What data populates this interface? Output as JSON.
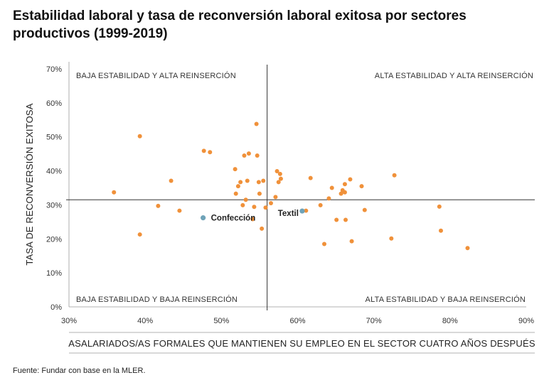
{
  "page": {
    "title": "Estabilidad laboral y tasa de reconversión laboral exitosa por sectores productivos (1999-2019)",
    "source": "Fuente: Fundar con base en la MLER."
  },
  "colors": {
    "points": "#F0913A",
    "highlight": "#6FA3B8",
    "lines": "#333333"
  },
  "chart_data": {
    "type": "scatter",
    "title": "Estabilidad laboral y tasa de reconversión laboral exitosa por sectores productivos (1999-2019)",
    "xlabel": "ASALARIADOS/AS FORMALES QUE MANTIENEN SU EMPLEO EN EL SECTOR CUATRO AÑOS DESPUÉS",
    "ylabel": "TASA DE RECONVERSIÓN EXITOSA",
    "xlim": [
      30,
      90
    ],
    "ylim": [
      0,
      70
    ],
    "xticks": [
      "30%",
      "40%",
      "50%",
      "60%",
      "70%",
      "80%",
      "90%"
    ],
    "yticks": [
      "0%",
      "10%",
      "20%",
      "30%",
      "40%",
      "50%",
      "60%",
      "70%"
    ],
    "reference_lines": {
      "x": 56,
      "y": 31.5
    },
    "quadrant_labels": {
      "top_left": "BAJA ESTABILIDAD Y ALTA REINSERCIÓN",
      "top_right": "ALTA ESTABILIDAD Y ALTA REINSERCIÓN",
      "bottom_left": "BAJA ESTABILIDAD Y BAJA REINSERCIÓN",
      "bottom_right": "ALTA ESTABILIDAD Y BAJA REINSERCIÓN"
    },
    "highlighted": [
      {
        "name": "Confección",
        "x": 47.6,
        "y": 26.2
      },
      {
        "name": "Textil",
        "x": 60.6,
        "y": 28.2
      }
    ],
    "points": [
      {
        "x": 35.9,
        "y": 33.7
      },
      {
        "x": 39.3,
        "y": 50.2
      },
      {
        "x": 39.3,
        "y": 21.3
      },
      {
        "x": 41.7,
        "y": 29.7
      },
      {
        "x": 43.4,
        "y": 37.1
      },
      {
        "x": 44.5,
        "y": 28.3
      },
      {
        "x": 47.7,
        "y": 45.9
      },
      {
        "x": 48.5,
        "y": 45.5
      },
      {
        "x": 51.8,
        "y": 40.5
      },
      {
        "x": 51.9,
        "y": 33.3
      },
      {
        "x": 52.2,
        "y": 35.5
      },
      {
        "x": 52.5,
        "y": 36.7
      },
      {
        "x": 52.8,
        "y": 29.9
      },
      {
        "x": 53.0,
        "y": 44.5
      },
      {
        "x": 53.2,
        "y": 31.5
      },
      {
        "x": 53.4,
        "y": 37.1
      },
      {
        "x": 53.6,
        "y": 45.1
      },
      {
        "x": 54.1,
        "y": 25.8
      },
      {
        "x": 54.3,
        "y": 29.4
      },
      {
        "x": 54.6,
        "y": 53.8
      },
      {
        "x": 54.7,
        "y": 44.5
      },
      {
        "x": 54.9,
        "y": 36.7
      },
      {
        "x": 55.0,
        "y": 33.3
      },
      {
        "x": 55.3,
        "y": 23.0
      },
      {
        "x": 55.5,
        "y": 37.1
      },
      {
        "x": 55.8,
        "y": 29.2
      },
      {
        "x": 56.5,
        "y": 30.5
      },
      {
        "x": 57.1,
        "y": 32.3
      },
      {
        "x": 57.3,
        "y": 39.9
      },
      {
        "x": 57.5,
        "y": 36.7
      },
      {
        "x": 57.7,
        "y": 39.1
      },
      {
        "x": 57.8,
        "y": 37.7
      },
      {
        "x": 61.1,
        "y": 28.3
      },
      {
        "x": 61.7,
        "y": 37.9
      },
      {
        "x": 63.0,
        "y": 29.9
      },
      {
        "x": 63.5,
        "y": 18.5
      },
      {
        "x": 64.1,
        "y": 31.9
      },
      {
        "x": 64.5,
        "y": 35.0
      },
      {
        "x": 65.1,
        "y": 25.6
      },
      {
        "x": 65.7,
        "y": 33.3
      },
      {
        "x": 65.9,
        "y": 34.3
      },
      {
        "x": 66.2,
        "y": 33.7
      },
      {
        "x": 66.2,
        "y": 36.1
      },
      {
        "x": 66.3,
        "y": 25.6
      },
      {
        "x": 66.9,
        "y": 37.5
      },
      {
        "x": 67.1,
        "y": 19.3
      },
      {
        "x": 68.4,
        "y": 35.5
      },
      {
        "x": 68.8,
        "y": 28.5
      },
      {
        "x": 72.3,
        "y": 20.1
      },
      {
        "x": 72.7,
        "y": 38.7
      },
      {
        "x": 78.6,
        "y": 29.5
      },
      {
        "x": 78.8,
        "y": 22.4
      },
      {
        "x": 82.3,
        "y": 17.3
      }
    ]
  }
}
